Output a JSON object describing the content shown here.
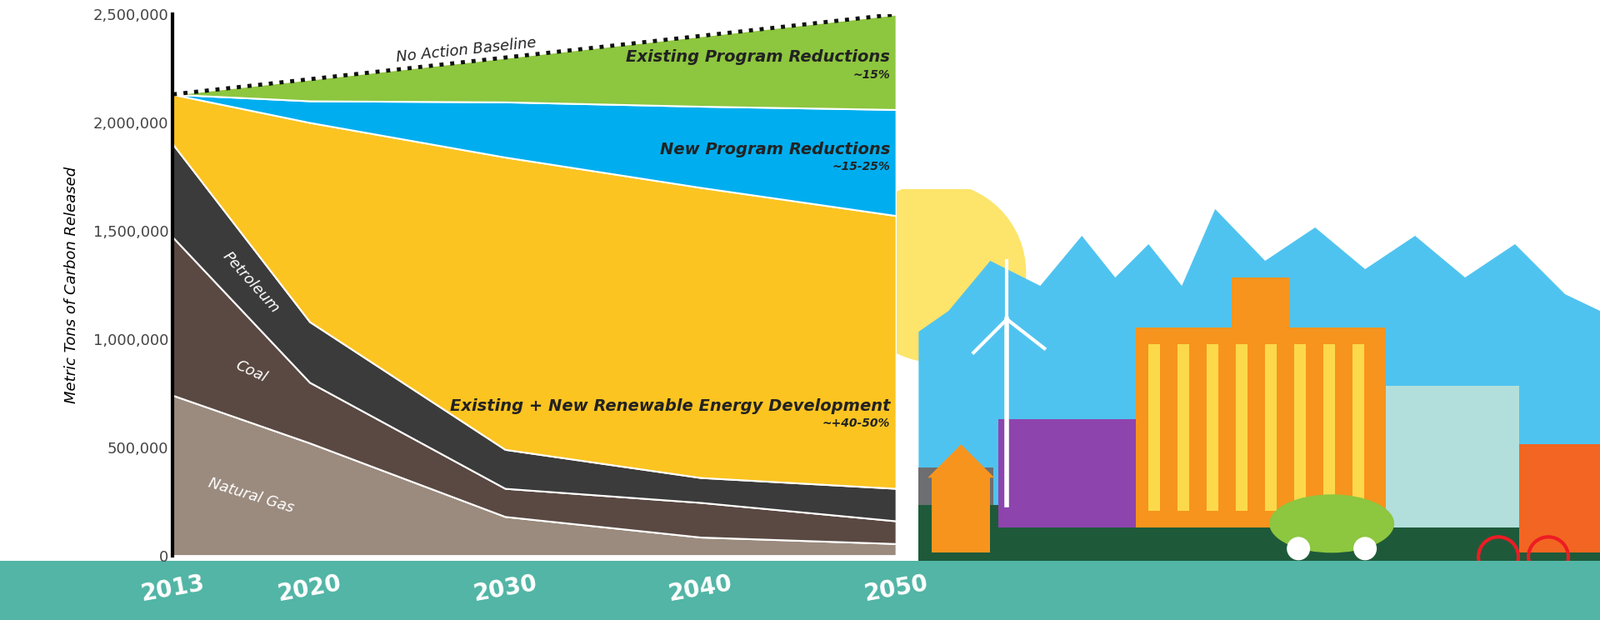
{
  "chart_data": {
    "type": "area",
    "stacked": true,
    "ylabel": "Metric Tons of Carbon Released",
    "x": [
      2013,
      2020,
      2030,
      2040,
      2050
    ],
    "xlim": [
      2013,
      2050
    ],
    "xticks": [
      2013,
      2020,
      2030,
      2040,
      2050
    ],
    "ylim": [
      0,
      2500000
    ],
    "yticks": [
      0,
      {
        "value": 500000,
        "label": "500,000"
      },
      {
        "value": 1000000,
        "label": "1,000,000"
      },
      {
        "value": 1500000,
        "label": "1,500,000"
      },
      {
        "value": 2000000,
        "label": "2,000,000"
      },
      {
        "value": 2500000,
        "label": "2,500,000"
      }
    ],
    "series": [
      {
        "name": "Natural Gas",
        "color": "#9b8b7e",
        "values": [
          740000,
          520000,
          180000,
          85000,
          55000
        ]
      },
      {
        "name": "Coal",
        "color": "#5a4942",
        "values": [
          730000,
          280000,
          130000,
          160000,
          105000
        ]
      },
      {
        "name": "Petroleum",
        "color": "#3b3b3b",
        "values": [
          430000,
          280000,
          180000,
          115000,
          150000
        ]
      },
      {
        "name": "Existing + New Renewable Energy Development",
        "color": "#fcc421",
        "annotation": "~+40-50%",
        "values": [
          230000,
          920000,
          1350000,
          1340000,
          1260000
        ]
      },
      {
        "name": "New Program Reductions",
        "color": "#00aeef",
        "annotation": "~15-25%",
        "values": [
          0,
          100000,
          255000,
          375000,
          490000
        ]
      },
      {
        "name": "Existing Program Reductions",
        "color": "#8dc63f",
        "annotation": "~15%",
        "values": [
          0,
          100000,
          205000,
          325000,
          440000
        ]
      },
      {
        "name": "No Action Baseline",
        "type": "line",
        "line_style": "dotted",
        "color": "#111111",
        "values": [
          2130000,
          2200000,
          2300000,
          2400000,
          2500000
        ]
      }
    ]
  }
}
